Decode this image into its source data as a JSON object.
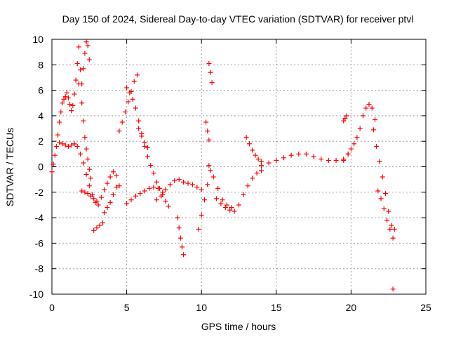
{
  "chart_data": {
    "type": "scatter",
    "title": "Day 150 of 2024, Sidereal Day-to-day VTEC variation (SDTVAR) for receiver ptvl",
    "xlabel": "GPS time / hours",
    "ylabel": "SDTVAR / TECUs",
    "xlim": [
      0,
      25
    ],
    "ylim": [
      -10,
      10
    ],
    "x_ticks": [
      "0",
      "5",
      "10",
      "15",
      "20",
      "25"
    ],
    "y_ticks": [
      "10",
      "8",
      "6",
      "4",
      "2",
      "0",
      "-2",
      "-4",
      "-6",
      "-8",
      "-10"
    ],
    "grid": true,
    "marker": "+",
    "marker_color": "#ff0000",
    "series": [
      {
        "name": "SDTVAR",
        "x": [
          0.0,
          0.1,
          0.2,
          0.3,
          0.4,
          0.5,
          0.6,
          0.7,
          0.8,
          0.9,
          1.0,
          1.1,
          1.2,
          1.3,
          1.4,
          1.5,
          1.6,
          1.7,
          1.8,
          1.9,
          2.0,
          2.1,
          2.2,
          2.3,
          2.4,
          2.5,
          0.5,
          0.7,
          0.9,
          1.1,
          1.3,
          1.5,
          1.7,
          1.9,
          2.1,
          2.3,
          2.5,
          2.7,
          2.9,
          3.1,
          3.3,
          3.5,
          3.7,
          3.9,
          4.1,
          4.3,
          4.5,
          1.8,
          2.0,
          2.1,
          2.2,
          2.3,
          2.4,
          2.5,
          2.6,
          2.0,
          2.2,
          2.4,
          2.6,
          2.8,
          3.0,
          2.8,
          3.0,
          3.2,
          3.4,
          3.5,
          3.7,
          3.9,
          4.1,
          4.3,
          4.5,
          4.7,
          4.9,
          5.1,
          5.3,
          5.5,
          5.7,
          5.0,
          5.2,
          5.4,
          5.6,
          5.8,
          6.0,
          6.2,
          6.4,
          5.8,
          6.0,
          6.2,
          6.4,
          6.6,
          6.8,
          7.0,
          7.2,
          7.4,
          7.6,
          7.8,
          5.0,
          5.3,
          5.6,
          5.9,
          6.2,
          6.5,
          6.8,
          7.1,
          7.4,
          7.0,
          7.3,
          7.6,
          7.9,
          8.2,
          8.5,
          8.8,
          9.1,
          9.4,
          9.7,
          10.0,
          8.4,
          8.5,
          8.6,
          8.7,
          8.8,
          9.8,
          10.0,
          10.2,
          10.4,
          10.6,
          10.3,
          10.4,
          10.5,
          10.5,
          10.6,
          10.7,
          10.5,
          10.8,
          11.1,
          11.4,
          11.7,
          12.0,
          11.0,
          11.3,
          11.6,
          11.9,
          12.2,
          12.5,
          12.8,
          13.1,
          13.4,
          13.7,
          14.0,
          13.0,
          13.2,
          13.4,
          13.6,
          13.8,
          14.0,
          14.0,
          14.5,
          15.0,
          15.5,
          16.0,
          16.5,
          17.0,
          17.5,
          18.0,
          18.5,
          19.0,
          19.5,
          19.8,
          19.5,
          19.6,
          19.7,
          19.5,
          19.8,
          20.0,
          20.2,
          20.4,
          20.6,
          20.8,
          21.0,
          21.2,
          21.4,
          21.6,
          21.5,
          21.7,
          21.9,
          22.1,
          22.3,
          22.5,
          22.7,
          22.8,
          21.8,
          22.0,
          22.2,
          22.4,
          22.6,
          22.9,
          22.8
        ],
        "y": [
          -0.4,
          0.2,
          0.9,
          1.6,
          2.5,
          3.5,
          4.3,
          5.0,
          5.3,
          5.5,
          5.8,
          5.4,
          4.9,
          4.4,
          4.8,
          5.7,
          6.8,
          8.1,
          9.4,
          7.6,
          6.5,
          7.7,
          8.9,
          9.8,
          9.5,
          8.4,
          1.9,
          1.8,
          1.7,
          1.6,
          1.7,
          1.8,
          1.6,
          1.0,
          0.3,
          -0.6,
          -1.5,
          -2.2,
          -2.8,
          -3.0,
          -2.4,
          -1.8,
          -1.3,
          -0.8,
          -0.4,
          -0.7,
          -1.5,
          6.5,
          5.0,
          3.6,
          2.3,
          1.4,
          0.6,
          -0.2,
          -0.9,
          -1.9,
          -2.0,
          -2.1,
          -2.3,
          -2.5,
          -2.7,
          -5.0,
          -4.8,
          -4.6,
          -4.4,
          -3.6,
          -3.2,
          -2.8,
          -2.2,
          -1.6,
          2.8,
          3.5,
          4.3,
          5.1,
          5.9,
          6.7,
          7.2,
          6.2,
          5.8,
          5.3,
          4.6,
          3.6,
          2.6,
          1.9,
          1.5,
          3.0,
          2.4,
          1.6,
          0.8,
          0.1,
          -0.5,
          -1.2,
          -1.7,
          -2.2,
          -2.7,
          -3.1,
          -2.9,
          -2.6,
          -2.3,
          -2.1,
          -1.9,
          -1.7,
          -1.6,
          -1.7,
          -2.0,
          -2.6,
          -2.3,
          -1.8,
          -1.4,
          -1.1,
          -1.0,
          -1.2,
          -1.3,
          -1.4,
          -1.6,
          -1.8,
          -4.0,
          -4.8,
          -5.6,
          -6.3,
          -6.9,
          -4.9,
          -3.8,
          -2.6,
          -1.4,
          -0.3,
          3.5,
          2.8,
          2.1,
          8.1,
          7.4,
          6.6,
          0.1,
          -0.8,
          -1.7,
          -2.6,
          -3.0,
          -3.2,
          -2.5,
          -2.9,
          -3.2,
          -3.4,
          -3.5,
          -3.0,
          -2.2,
          -1.5,
          -0.9,
          -0.5,
          -0.3,
          2.3,
          1.8,
          1.3,
          0.9,
          0.6,
          0.4,
          0.1,
          0.3,
          0.5,
          0.7,
          0.9,
          1.0,
          1.0,
          0.8,
          0.6,
          0.5,
          0.5,
          0.6,
          1.0,
          3.6,
          3.8,
          4.0,
          0.5,
          1.0,
          1.4,
          1.8,
          2.3,
          3.0,
          4.0,
          4.6,
          4.9,
          4.6,
          3.7,
          2.9,
          1.6,
          0.4,
          -0.8,
          -2.1,
          -3.5,
          -4.6,
          -5.6,
          -1.9,
          -2.5,
          -3.3,
          -4.2,
          -4.9,
          -4.9,
          -9.6
        ]
      }
    ]
  }
}
